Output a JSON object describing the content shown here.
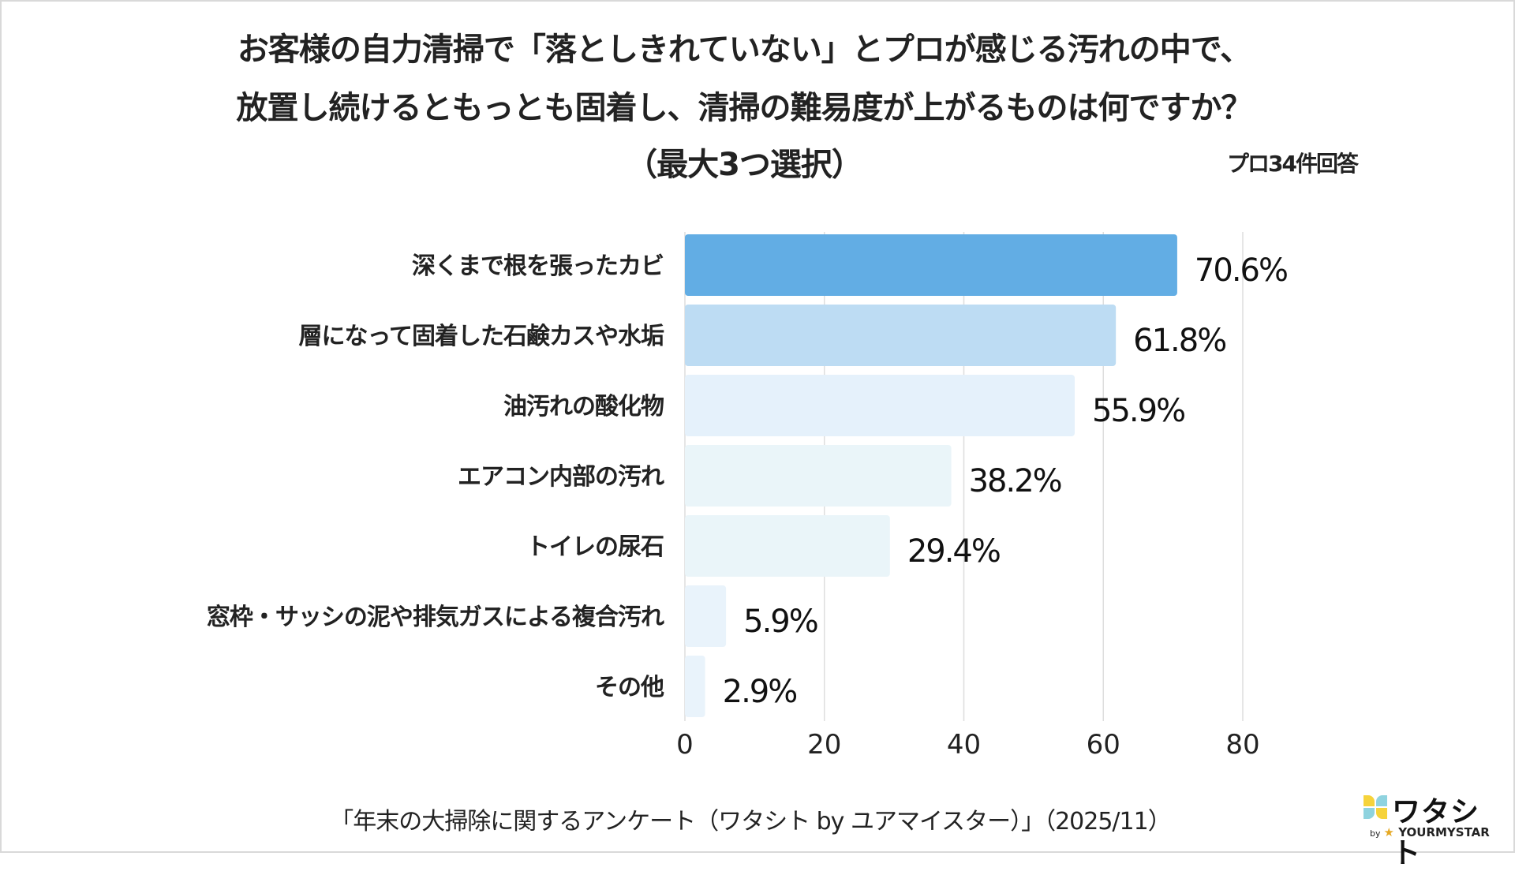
{
  "chart_data": {
    "type": "bar",
    "orientation": "horizontal",
    "title": [
      "お客様の自力清掃で「落としきれていない」とプロが感じる汚れの中で、",
      "放置し続けるともっとも固着し、清掃の難易度が上がるものは何ですか？",
      "（最大3つ選択）"
    ],
    "note": "プロ34件回答",
    "categories": [
      "深くまで根を張ったカビ",
      "層になって固着した石鹸カスや水垢",
      "油汚れの酸化物",
      "エアコン内部の汚れ",
      "トイレの尿石",
      "窓枠・サッシの泥や排気ガスによる複合汚れ",
      "その他"
    ],
    "values": [
      70.6,
      61.8,
      55.9,
      38.2,
      29.4,
      5.9,
      2.9
    ],
    "data_labels": [
      "70.6%",
      "61.8%",
      "55.9%",
      "38.2%",
      "29.4%",
      "5.9%",
      "2.9%"
    ],
    "bar_colors": [
      "#62ade4",
      "#bddcf3",
      "#e5f1fb",
      "#eaf5f9",
      "#eaf5f9",
      "#e9f3fb",
      "#e9f3fb"
    ],
    "xlim": [
      0,
      80
    ],
    "xticks": [
      "0",
      "20",
      "40",
      "60",
      "80"
    ],
    "grid": true,
    "xlabel": "",
    "ylabel": ""
  },
  "footer": "「年末の大掃除に関するアンケート（ワタシト by ユアマイスター）」（2025/11）",
  "logo": {
    "name": "ワタシト",
    "by": "by",
    "brand": "YOURMYSTAR"
  }
}
